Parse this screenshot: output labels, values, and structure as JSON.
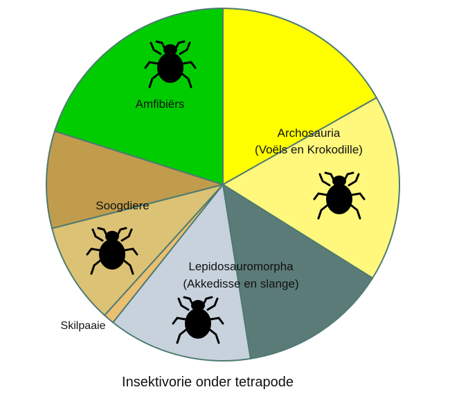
{
  "chart_data": {
    "type": "pie",
    "title": "Insektivorie onder tetrapode",
    "unit": "percent",
    "slices": [
      {
        "group": "Archosauria",
        "value": 16.8,
        "color": "#ffff00"
      },
      {
        "group": "Archosauria",
        "value": 17.1,
        "color": "#fff87c"
      },
      {
        "group": "Lepidosauromorpha",
        "value": 13.6,
        "color": "#5b7b78"
      },
      {
        "group": "Lepidosauromorpha",
        "value": 13.2,
        "color": "#c7d2dc"
      },
      {
        "group": "Skilpaaie",
        "value": 1.0,
        "color": "#eabf72"
      },
      {
        "group": "Soogdiere",
        "value": 9.3,
        "color": "#dcc274"
      },
      {
        "group": "Soogdiere",
        "value": 8.9,
        "color": "#c09c4c"
      },
      {
        "group": "Amfibiërs",
        "value": 20.1,
        "color": "#00cc00"
      }
    ],
    "labels": {
      "amfibiers": "Amfibiërs",
      "archosauria_1": "Archosauria",
      "archosauria_2": "(Voëls en Krokodille)",
      "soogdiere": "Soogdiere",
      "lepido_1": "Lepidosauromorpha",
      "lepido_2": "(Akkedisse en slange)",
      "skilpaaie": "Skilpaaie"
    },
    "border_color": "#4d7a72",
    "icon": "beetle-icon"
  }
}
